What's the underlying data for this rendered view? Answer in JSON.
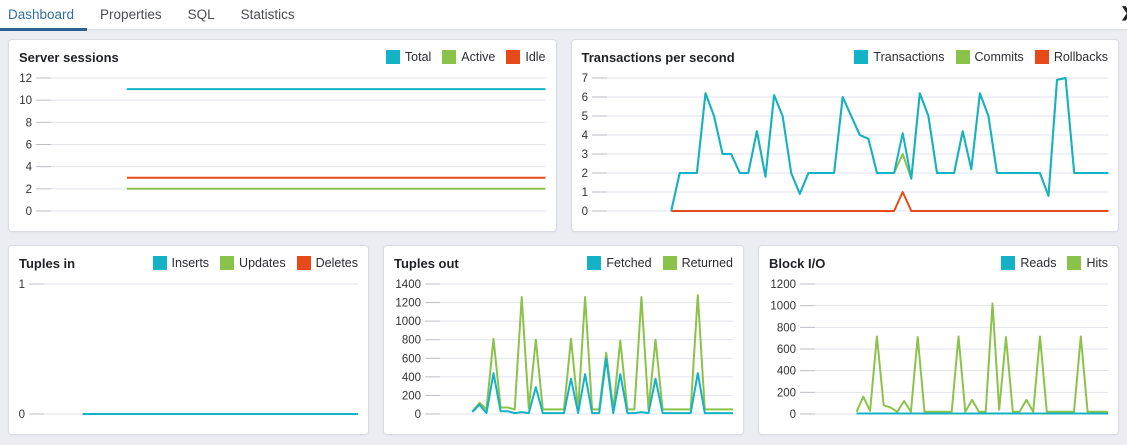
{
  "tabs": {
    "items": [
      {
        "label": "Dashboard",
        "active": true
      },
      {
        "label": "Properties",
        "active": false
      },
      {
        "label": "SQL",
        "active": false
      },
      {
        "label": "Statistics",
        "active": false
      }
    ],
    "overflow_icon": "chevron-right",
    "overflow_glyph": "❯"
  },
  "colors": {
    "cyan": "#14b2c7",
    "green": "#8BC34A",
    "red": "#E64A19",
    "active_tab_text": "#3070a4",
    "active_tab_underline": "#2c6291",
    "gridline": "#e1e3ee",
    "tick_mark": "#bcbdc4",
    "tick_text": "#333333"
  },
  "panels": [
    {
      "id": "server-sessions",
      "title": "Server sessions",
      "legend": [
        {
          "label": "Total",
          "color": "cyan"
        },
        {
          "label": "Active",
          "color": "green"
        },
        {
          "label": "Idle",
          "color": "red"
        }
      ],
      "chart_data": {
        "type": "line",
        "title": "Server sessions",
        "ylim": [
          0,
          12
        ],
        "yticks": [
          12,
          10,
          8,
          6,
          4,
          2,
          0
        ],
        "grid": true,
        "x_start_frac": 0.17,
        "series": [
          {
            "name": "Total",
            "color": "cyan",
            "values": [
              11,
              11
            ]
          },
          {
            "name": "Active",
            "color": "green",
            "values": [
              2,
              2
            ]
          },
          {
            "name": "Idle",
            "color": "red",
            "values": [
              3,
              3
            ]
          }
        ]
      }
    },
    {
      "id": "transactions-per-second",
      "title": "Transactions per second",
      "legend": [
        {
          "label": "Transactions",
          "color": "cyan"
        },
        {
          "label": "Commits",
          "color": "green"
        },
        {
          "label": "Rollbacks",
          "color": "red"
        }
      ],
      "chart_data": {
        "type": "line",
        "title": "Transactions per second",
        "ylim": [
          0,
          7
        ],
        "yticks": [
          7,
          6,
          5,
          4,
          3,
          2,
          1,
          0
        ],
        "grid": true,
        "x_start_frac": 0.145,
        "series": [
          {
            "name": "Transactions",
            "color": "cyan",
            "values": [
              0,
              2,
              2,
              2,
              6.2,
              5,
              3,
              3,
              2,
              2,
              4.2,
              1.8,
              6.1,
              5,
              2,
              0.9,
              2,
              2,
              2,
              2,
              6,
              5,
              4,
              3.8,
              2,
              2,
              2,
              4.1,
              1.7,
              6.2,
              5,
              2,
              2,
              2,
              4.2,
              2.2,
              6.2,
              5,
              2,
              2,
              2,
              2,
              2,
              2,
              0.8,
              6.9,
              7,
              2,
              2,
              2,
              2,
              2
            ]
          },
          {
            "name": "Commits",
            "color": "green",
            "values": [
              0,
              2,
              2,
              2,
              6.2,
              5,
              3,
              3,
              2,
              2,
              4.2,
              1.8,
              6.1,
              5,
              2,
              0.9,
              2,
              2,
              2,
              2,
              6,
              5,
              4,
              3.8,
              2,
              2,
              2,
              3,
              1.7,
              6.2,
              5,
              2,
              2,
              2,
              4.2,
              2.2,
              6.2,
              5,
              2,
              2,
              2,
              2,
              2,
              2,
              0.8,
              6.9,
              7,
              2,
              2,
              2,
              2,
              2
            ]
          },
          {
            "name": "Rollbacks",
            "color": "red",
            "values": [
              0,
              0,
              0,
              0,
              0,
              0,
              0,
              0,
              0,
              0,
              0,
              0,
              0,
              0,
              0,
              0,
              0,
              0,
              0,
              0,
              0,
              0,
              0,
              0,
              0,
              0,
              0,
              1,
              0,
              0,
              0,
              0,
              0,
              0,
              0,
              0,
              0,
              0,
              0,
              0,
              0,
              0,
              0,
              0,
              0,
              0,
              0,
              0,
              0,
              0,
              0,
              0
            ]
          }
        ]
      }
    },
    {
      "id": "tuples-in",
      "title": "Tuples in",
      "legend": [
        {
          "label": "Inserts",
          "color": "cyan"
        },
        {
          "label": "Updates",
          "color": "green"
        },
        {
          "label": "Deletes",
          "color": "red"
        }
      ],
      "chart_data": {
        "type": "line",
        "title": "Tuples in",
        "ylim": [
          0,
          1
        ],
        "yticks": [
          1,
          0
        ],
        "grid": true,
        "x_start_frac": 0.15,
        "series": [
          {
            "name": "Inserts",
            "color": "cyan",
            "values": [
              0,
              0
            ]
          },
          {
            "name": "Updates",
            "color": "green",
            "values": [
              0,
              0
            ]
          },
          {
            "name": "Deletes",
            "color": "red",
            "values": [
              0,
              0
            ]
          }
        ]
      }
    },
    {
      "id": "tuples-out",
      "title": "Tuples out",
      "legend": [
        {
          "label": "Fetched",
          "color": "cyan"
        },
        {
          "label": "Returned",
          "color": "green"
        }
      ],
      "chart_data": {
        "type": "line",
        "title": "Tuples out",
        "ylim": [
          0,
          1400
        ],
        "yticks": [
          1400,
          1200,
          1000,
          800,
          600,
          400,
          200,
          0
        ],
        "grid": true,
        "x_start_frac": 0.14,
        "series": [
          {
            "name": "Fetched",
            "color": "cyan",
            "values": [
              20,
              100,
              10,
              440,
              30,
              30,
              10,
              20,
              10,
              290,
              10,
              10,
              10,
              10,
              380,
              10,
              430,
              10,
              10,
              600,
              10,
              430,
              10,
              10,
              20,
              10,
              380,
              10,
              10,
              10,
              10,
              10,
              440,
              10,
              10,
              10,
              10,
              10
            ]
          },
          {
            "name": "Returned",
            "color": "green",
            "values": [
              30,
              120,
              50,
              810,
              70,
              70,
              50,
              1260,
              60,
              800,
              50,
              50,
              50,
              50,
              810,
              50,
              1260,
              50,
              50,
              660,
              50,
              790,
              50,
              50,
              1260,
              50,
              800,
              50,
              50,
              50,
              50,
              50,
              1280,
              50,
              50,
              50,
              50,
              50
            ]
          }
        ]
      }
    },
    {
      "id": "block-io",
      "title": "Block I/O",
      "legend": [
        {
          "label": "Reads",
          "color": "cyan"
        },
        {
          "label": "Hits",
          "color": "green"
        }
      ],
      "chart_data": {
        "type": "line",
        "title": "Block I/O",
        "ylim": [
          0,
          1200
        ],
        "yticks": [
          1200,
          1000,
          800,
          600,
          400,
          200,
          0
        ],
        "grid": true,
        "x_start_frac": 0.17,
        "series": [
          {
            "name": "Reads",
            "color": "cyan",
            "values": [
              5,
              5,
              5,
              5,
              5,
              5,
              5,
              5,
              5,
              5,
              5,
              5,
              5,
              5,
              5,
              5,
              5,
              5,
              5,
              5,
              5,
              5,
              5,
              5,
              5,
              5,
              5,
              5,
              5,
              5,
              5,
              5,
              5,
              5,
              5,
              5,
              5,
              5
            ]
          },
          {
            "name": "Hits",
            "color": "green",
            "values": [
              20,
              160,
              30,
              715,
              80,
              60,
              20,
              120,
              20,
              710,
              20,
              20,
              20,
              20,
              20,
              715,
              20,
              130,
              20,
              20,
              1020,
              40,
              710,
              20,
              20,
              130,
              20,
              715,
              20,
              20,
              20,
              20,
              20,
              715,
              20,
              20,
              20,
              20
            ]
          }
        ]
      }
    }
  ]
}
